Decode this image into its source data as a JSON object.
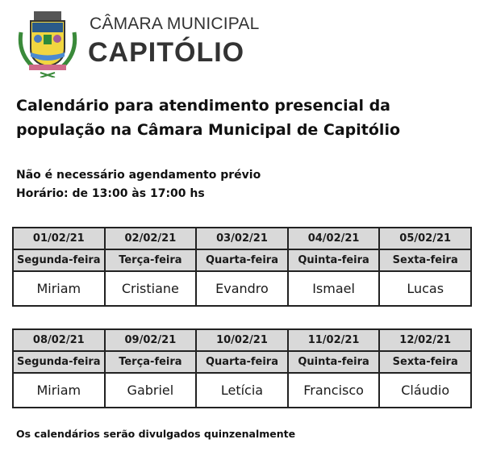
{
  "header": {
    "org_line1": "CÂMARA MUNICIPAL",
    "org_line2": "CAPITÓLIO"
  },
  "title": {
    "line1": "Calendário para atendimento presencial da",
    "line2": "população na Câmara Municipal de Capitólio"
  },
  "info": {
    "line1": "Não é necessário agendamento prévio",
    "line2": "Horário: de 13:00 às 17:00 hs"
  },
  "weeks": [
    {
      "dates": [
        "01/02/21",
        "02/02/21",
        "03/02/21",
        "04/02/21",
        "05/02/21"
      ],
      "days": [
        "Segunda-feira",
        "Terça-feira",
        "Quarta-feira",
        "Quinta-feira",
        "Sexta-feira"
      ],
      "names": [
        "Miriam",
        "Cristiane",
        "Evandro",
        "Ismael",
        "Lucas"
      ]
    },
    {
      "dates": [
        "08/02/21",
        "09/02/21",
        "10/02/21",
        "11/02/21",
        "12/02/21"
      ],
      "days": [
        "Segunda-feira",
        "Terça-feira",
        "Quarta-feira",
        "Quinta-feira",
        "Sexta-feira"
      ],
      "names": [
        "Miriam",
        "Gabriel",
        "Letícia",
        "Francisco",
        "Cláudio"
      ]
    }
  ],
  "footer": "Os calendários serão divulgados quinzenalmente",
  "colors": {
    "header_cell": "#d9d9d9",
    "text": "#1a1a1a"
  }
}
